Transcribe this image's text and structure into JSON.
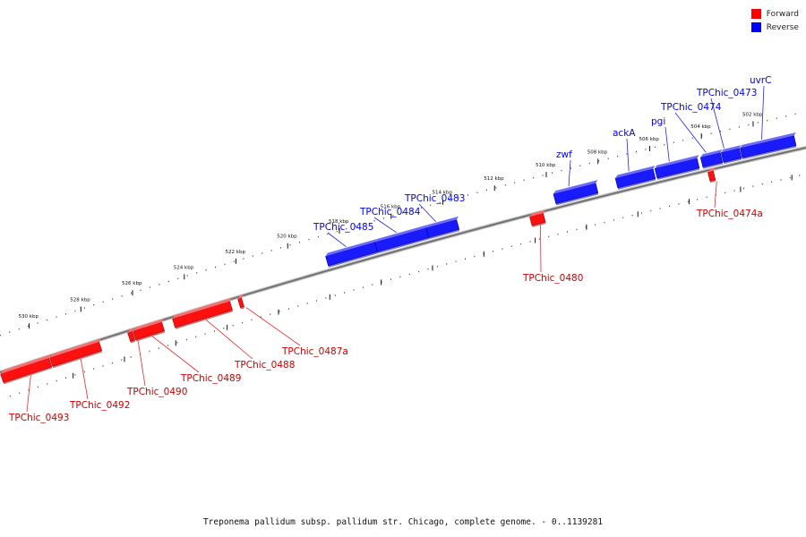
{
  "legend": {
    "forward_label": "Forward",
    "reverse_label": "Reverse",
    "forward_color": "#ff0000",
    "reverse_color": "#0000ff"
  },
  "caption": "Treponema pallidum subsp. pallidum str. Chicago, complete genome. - 0..1139281",
  "scale_labels": [
    "502 kbp",
    "504 kbp",
    "506 kbp",
    "508 kbp",
    "510 kbp",
    "512 kbp",
    "514 kbp",
    "516 kbp",
    "518 kbp",
    "520 kbp",
    "522 kbp",
    "524 kbp",
    "526 kbp",
    "528 kbp",
    "530 kbp"
  ],
  "forward_genes": [
    "TPChic_0493",
    "TPChic_0492",
    "TPChic_0490",
    "TPChic_0489",
    "TPChic_0488",
    "TPChic_0487a",
    "TPChic_0480",
    "TPChic_0474a"
  ],
  "reverse_genes": [
    "TPChic_0485",
    "TPChic_0484",
    "TPChic_0483",
    "zwf",
    "ackA",
    "pgi",
    "TPChic_0474",
    "TPChic_0473",
    "uvrC"
  ]
}
